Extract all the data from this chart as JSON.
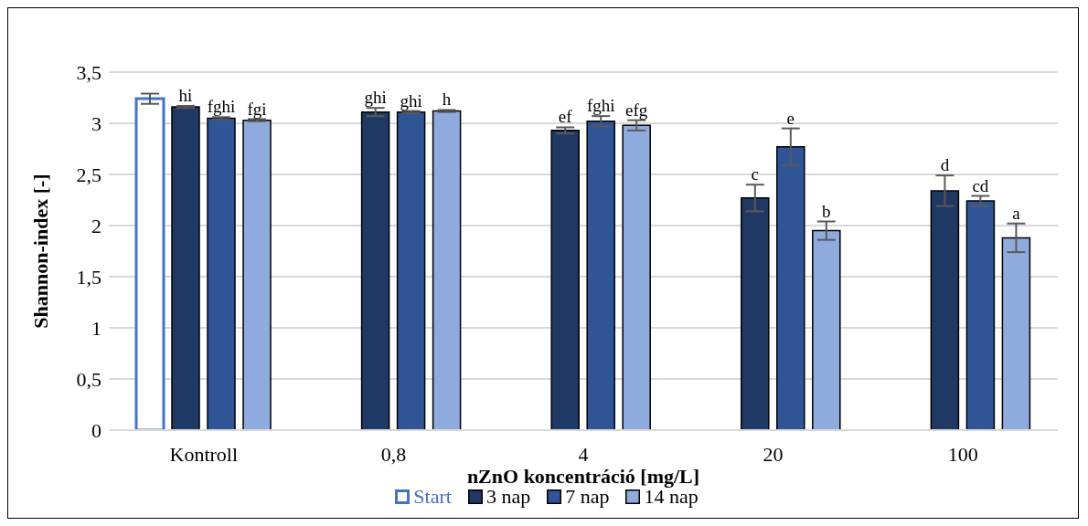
{
  "chart_data": {
    "type": "bar",
    "xlabel": "nZnO koncentráció [mg/L]",
    "ylabel": "Shannon-index [-]",
    "categories": [
      "Kontroll",
      "0,8",
      "4",
      "20",
      "100"
    ],
    "series": [
      {
        "name": "Start",
        "color": "#4472c4",
        "values": [
          3.24,
          null,
          null,
          null,
          null
        ],
        "errors": [
          0.05,
          null,
          null,
          null,
          null
        ]
      },
      {
        "name": "3 nap",
        "color": "#203864",
        "values": [
          3.16,
          3.11,
          2.93,
          2.27,
          2.34
        ],
        "errors": [
          0.01,
          0.04,
          0.03,
          0.13,
          0.15
        ],
        "value_labels": [
          "hi",
          "ghi",
          "ef",
          "c",
          "d"
        ]
      },
      {
        "name": "7 nap",
        "color": "#2f5597",
        "values": [
          3.05,
          3.11,
          3.02,
          2.77,
          2.24
        ],
        "errors": [
          0.01,
          0.01,
          0.05,
          0.18,
          0.05
        ],
        "value_labels": [
          "fghi",
          "ghi",
          "fghi",
          "e",
          "cd"
        ]
      },
      {
        "name": "14 nap",
        "color": "#8faadc",
        "values": [
          3.03,
          3.12,
          2.98,
          1.95,
          1.88
        ],
        "errors": [
          0.01,
          0.01,
          0.05,
          0.09,
          0.14
        ],
        "value_labels": [
          "fgi",
          "h",
          "efg",
          "b",
          "a"
        ]
      }
    ],
    "ylim": [
      0,
      3.5
    ],
    "yticks": [
      0,
      {
        "value": 0.5,
        "label": "0,5"
      },
      1,
      {
        "value": 1.5,
        "label": "1,5"
      },
      2,
      {
        "value": 2.5,
        "label": "2,5"
      },
      3,
      {
        "value": 3.5,
        "label": "3,5"
      }
    ],
    "grid": "y",
    "legend": "bottom"
  }
}
